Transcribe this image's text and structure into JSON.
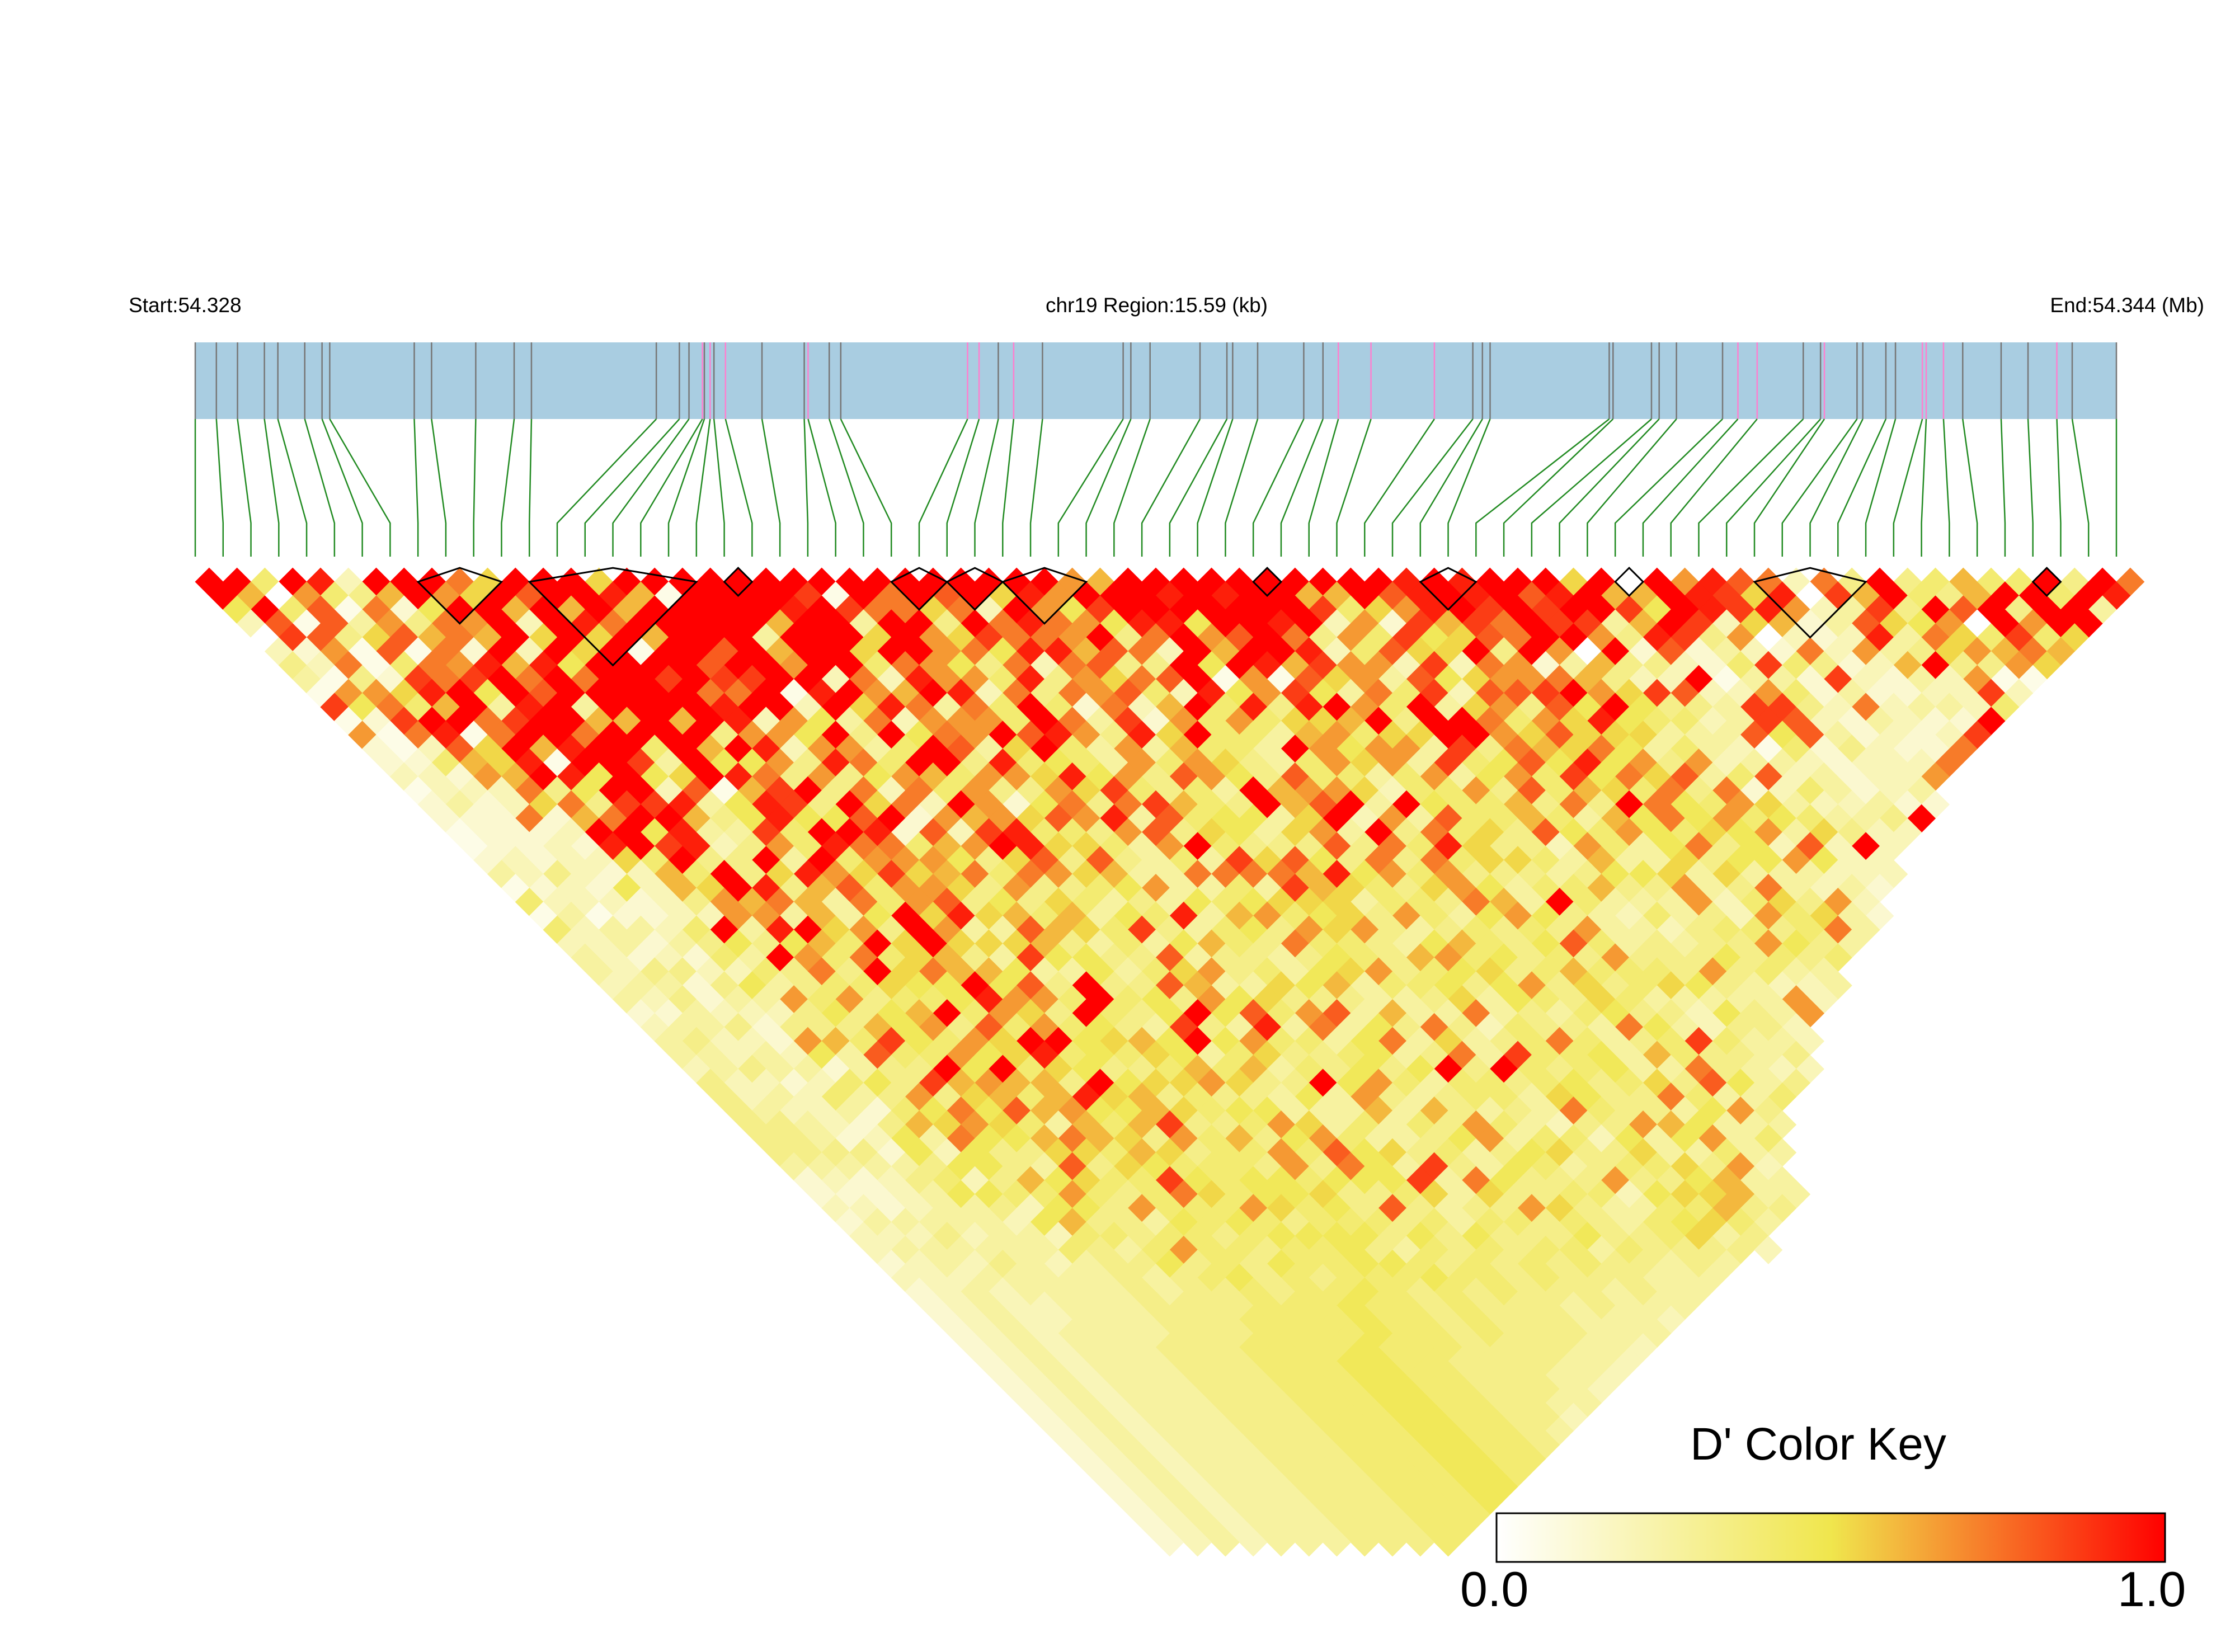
{
  "header": {
    "start_label": "Start:54.328",
    "region_label": "chr19 Region:15.59 (kb)",
    "end_label": "End:54.344 (Mb)"
  },
  "color_key": {
    "title": "D' Color Key",
    "min_label": "0.0",
    "max_label": "1.0",
    "colors": [
      "#ffffff",
      "#f0e64d",
      "#ff0000"
    ]
  },
  "colors": {
    "track": "#a9cde1",
    "snp_line": "#777777",
    "highlight_line": "#ff7fcf",
    "connector": "#228b22",
    "block_outline": "#000000"
  },
  "chart_data": {
    "type": "heatmap",
    "description": "Linkage disequilibrium (D') triangular heatmap over 70 SNPs in chr19:54.328-54.344 Mb",
    "region_start_mb": 54.328,
    "region_end_mb": 54.344,
    "region_size_kb": 15.59,
    "n_snps": 70,
    "value_range": [
      0,
      1
    ],
    "snp_track_fractions": [
      0,
      0.011,
      0.022,
      0.036,
      0.043,
      0.057,
      0.066,
      0.07,
      0.114,
      0.123,
      0.146,
      0.166,
      0.175,
      0.24,
      0.252,
      0.257,
      0.264,
      0.265,
      0.268,
      0.27,
      0.276,
      0.295,
      0.317,
      0.319,
      0.33,
      0.336,
      0.402,
      0.408,
      0.418,
      0.426,
      0.441,
      0.483,
      0.487,
      0.497,
      0.523,
      0.537,
      0.54,
      0.553,
      0.577,
      0.587,
      0.595,
      0.612,
      0.645,
      0.665,
      0.67,
      0.674,
      0.736,
      0.738,
      0.758,
      0.762,
      0.771,
      0.795,
      0.803,
      0.813,
      0.837,
      0.846,
      0.848,
      0.865,
      0.868,
      0.88,
      0.885,
      0.899,
      0.901,
      0.91,
      0.92,
      0.94,
      0.954,
      0.969,
      0.977,
      1.0
    ],
    "highlighted_snp_indices": [
      16,
      18,
      20,
      23,
      26,
      27,
      29,
      40,
      41,
      42,
      52,
      53,
      56,
      61,
      62,
      63,
      67
    ],
    "ld_blocks": [
      [
        8,
        10
      ],
      [
        12,
        17
      ],
      [
        19,
        19
      ],
      [
        25,
        26
      ],
      [
        27,
        28
      ],
      [
        29,
        31
      ],
      [
        38,
        38
      ],
      [
        44,
        45
      ],
      [
        51,
        51
      ],
      [
        56,
        59
      ],
      [
        66,
        66
      ]
    ],
    "ld_rows": [
      "ff6fe3fffb8fff8ffffffffffffffffa9ffffffffffefefff8f0faecb3b5f56966f5fb",
      "f90a659fa8fcffe91ffffd1fbfcf8eafffefeff99fcefefcef99fed8e0d9f659ff6fe",
      "7f6c1b27ff9f9f9fffffefdbb8b3fa7dfffffffd68aefdfdffd7fedea34d5fcf5ff4",
      "3c1c4a5baf3febfffff9ff4ff5fbeba7ee7ffef3a2d9dbfdd49fd38924c87a0faff",
      "0dc58c9b9f8f8f9fff4fff8fa8dbbaf5bfacfb5a6d78cbffa5ed5a0323e4b86d68",
      "32a1c1b2f3f8f1ffcf9ff8ffab7ee9cb3f9ffe36c88f5fa0f2c2432b3a458a9b9",
      "53b16bae9e7ffffcffaff6ba75b3bc55f7fe9daa3d3ba24955326d65239f55a8",
      "4152dbdfbfbffdfddff3b3eaa6e5a8bcf1a1c8a4c78aab9533f1442d3243a11",
      "1aa8ef7fcfffffbbf1efa9fe3b5bac63e7ad74b6d3ccdfa8dc33a6242233d3",
      "d7b69f4ef4ffffeff3f8eb4b6f62b39f6e5efa6f48a5c7f7554dd53b34436",
      "12dffbdff99f9fe3a74b3aaa6fb4d2a6a6889f5ffb6a8e76634dc324322f",
      "a1be1bffbffff5aa7f5f7bafcea5e8f6649a688ffa8c888444c7c42323d",
      "213c8f9eff6f9fe3aa46fc48f64a49664fa7aa4d5b98b746431625322b",
      "22698e1ffd4f77a5eb6ff5e6764a6a8546a8a4d67c7e7a5a34432333b",
      "332a9fe7f78feb5a57a96aa8e7a5ca75c6646a47a6d7b8c46c34233a",
      "1333b57ff3c19df5b3b6a55a8d6564f9aa8366a5c6986b5b2364234",
      "24238b5dde47ed5f8b3fa27b5bd965f9cf4f76695b5fb76a8433422",
      "222b29bff957e77cf2a9a8cae4c67748f3a4c6696497b7a676445f",
      "12223ff7e44d6ffe2c3de665ac58748a4f5b685c76a7687a48533",
      "12232efde35a6ebb69afe8864af6555c5b6e8553a647b573c3f3",
      "2323386f55f4f6aaa758c5c5464d8c75b5b688649448577a733",
      "43532396f58ea8d89b6ba8944bbbb9e7a6a5554577848444333",
      "12327398fe59c6aa85a5567a4464d98658a7466955a45b4342",
      "6333235a9b94b6ac575864547678884665b94f6444a3685a3",
      "1412233aa4947f8e8969476e49a6785a647a75436453a6842",
      "634436f4ef8a5fa44c986d54675a8a5456565a44356656b4",
      "33424575796f8f888954647965b665479657c645455a754",
      "4323264fa6b68954d7755c455457659a67565a55575656",
      "43553365b5f8b997447468a56478a56785696665a5644",
      "3442574566877f7c5f55c944879466757a58568754334",
      "435244a6a5667eaa6f675a78555445847658644444a3",
      "22433357579f6a85f657f7c6ac4944b45467553754a",
      "3445255597a5c6a6754d54e4b475b536554b743553",
      "45332a96d76a8ff7897f7a6647b48456b6456d6443",
      "4434374c66a78e67687468556745b4d6674965545",
      "345442455f7f687556969465757f5f656744b5433",
      "53323675d9a995f788a855f7a64665675685c745",
      "5343645a58969e895655474a5456648755b6446",
      "54334267b7c9a77986774449495454b65547a5",
      "55432598a864969d556a846465a64355a97444",
      "5542374b779b985a6957a64457a4663747a46",
      "555527375588698566a6c7856457855844644",
      "4444457754c5876665a5b74d5476456685a3",
      "2323563597866d76776777d4b7555a557944",
      "222347766a656b8677855684855663788944",
      "33234453775a666a8675c5455a854466955",
      "2444443795547676566656466565467864",
      "333534436656656777757575557556845",
      "34444446546a665667546565664655553",
      "2343543455756576677656565655454",
      "333444445456756566676656555444",
      "23434444545565667656565554544",
      "2343344455556667665655545444",
      "234334445556666766565554443",
      "23434444555666676656555444",
      "2343444555666676665555443",
      "234344455566677665555443",
      "23434445556667766555443",
      "2343444555666776655543",
      "234344455566677665544",
      "23434445556667766553",
      "2343444555666776654",
      "234344455566677665",
      "23434445556667766",
      "2343444555666776",
      "234344455566677",
      "23434445556667",
      "2343444555666",
      "234344455566",
      "23434445556"
    ]
  }
}
